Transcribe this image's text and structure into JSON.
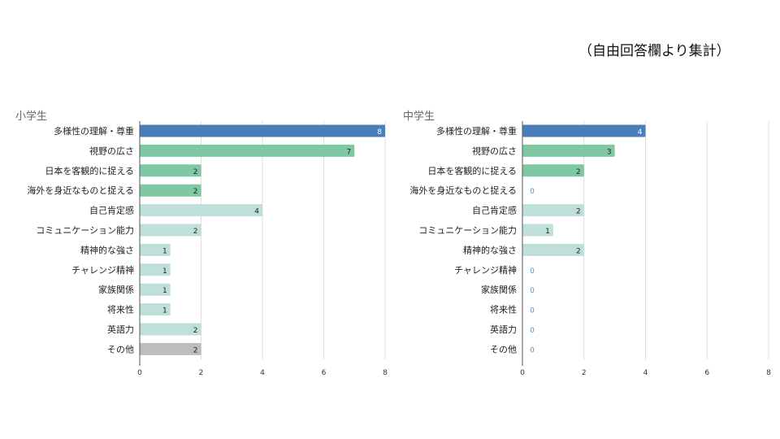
{
  "note": "（自由回答欄より集計）",
  "colors": {
    "blue": "#4a7ebb",
    "green": "#7ec8a4",
    "light": "#bfe0da",
    "gray": "#bdbdbd",
    "zero_label": "#4a90d9"
  },
  "chart_data": [
    {
      "type": "bar",
      "orientation": "horizontal",
      "title": "小学生",
      "categories": [
        "多様性の理解・尊重",
        "視野の広さ",
        "日本を客観的に捉える",
        "海外を身近なものと捉える",
        "自己肯定感",
        "コミュニケーション能力",
        "精神的な強さ",
        "チャレンジ精神",
        "家族関係",
        "将来性",
        "英語力",
        "その他"
      ],
      "values": [
        8,
        7,
        2,
        2,
        4,
        2,
        1,
        1,
        1,
        1,
        2,
        2
      ],
      "bar_colors": [
        "blue",
        "green",
        "green",
        "green",
        "light",
        "light",
        "light",
        "light",
        "light",
        "light",
        "light",
        "gray"
      ],
      "xlim": [
        0,
        8
      ],
      "xticks": [
        0,
        2,
        4,
        6,
        8
      ],
      "grid": true
    },
    {
      "type": "bar",
      "orientation": "horizontal",
      "title": "中学生",
      "categories": [
        "多様性の理解・尊重",
        "視野の広さ",
        "日本を客観的に捉える",
        "海外を身近なものと捉える",
        "自己肯定感",
        "コミュニケーション能力",
        "精神的な強さ",
        "チャレンジ精神",
        "家族関係",
        "将来性",
        "英語力",
        "その他"
      ],
      "values": [
        4,
        3,
        2,
        0,
        2,
        1,
        2,
        0,
        0,
        0,
        0,
        0
      ],
      "bar_colors": [
        "blue",
        "green",
        "green",
        "green",
        "light",
        "light",
        "light",
        "light",
        "light",
        "light",
        "light",
        "gray"
      ],
      "xlim": [
        0,
        8
      ],
      "xticks": [
        0,
        2,
        4,
        6,
        8
      ],
      "grid": true
    }
  ]
}
